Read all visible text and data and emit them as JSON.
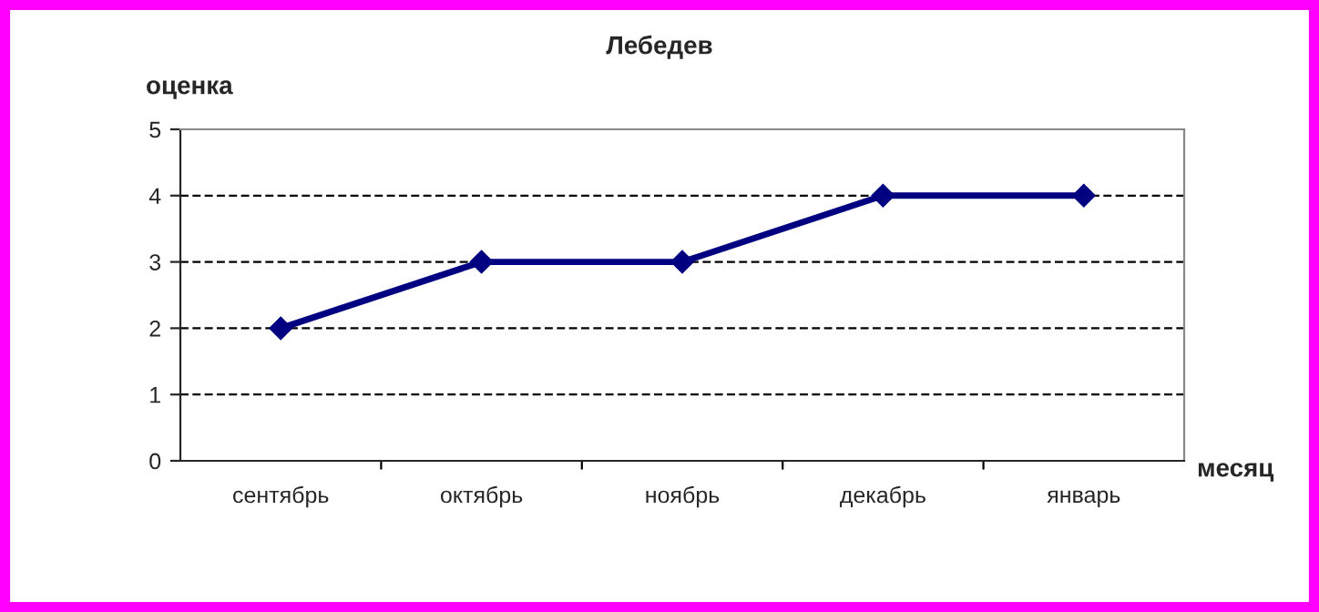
{
  "chart_data": {
    "type": "line",
    "title": "Лебедев",
    "xlabel": "месяц",
    "ylabel": "оценка",
    "categories": [
      "сентябрь",
      "октябрь",
      "ноябрь",
      "декабрь",
      "январь"
    ],
    "series": [
      {
        "color": "#000080",
        "values": [
          2,
          3,
          3,
          4,
          4
        ]
      }
    ],
    "ylim": [
      0,
      5
    ],
    "yticks": [
      0,
      1,
      2,
      3,
      4,
      5
    ],
    "grid": "y",
    "marker": "diamond",
    "line_style": "solid",
    "legend": false
  }
}
